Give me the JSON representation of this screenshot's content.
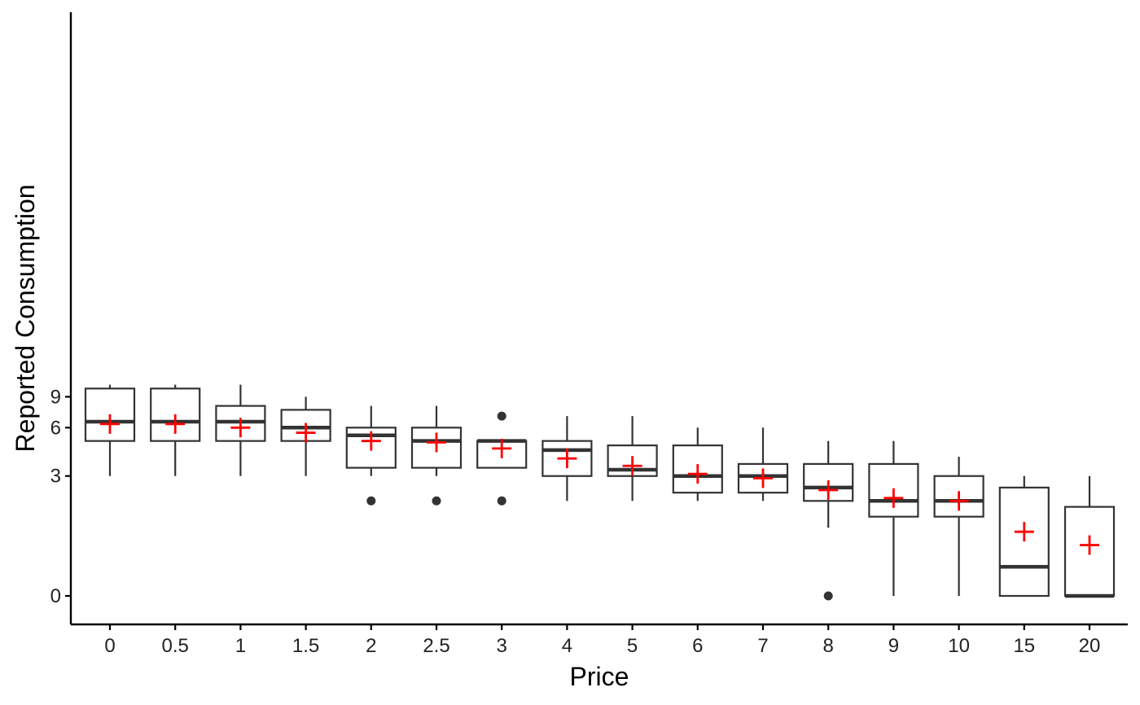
{
  "chart_data": {
    "type": "boxplot",
    "xlabel": "Price",
    "ylabel": "Reported Consumption",
    "y_scale": "log(x+1)",
    "y_ticks": [
      0,
      3,
      6,
      9
    ],
    "y_tick_labels": [
      "0",
      "3",
      "6",
      "9"
    ],
    "grid": false,
    "legend": "none",
    "colors": {
      "box": "#333333",
      "mean_marker": "#ff0000",
      "axis": "#000000"
    },
    "mean_marker": "plus",
    "categories": [
      "0",
      "0.5",
      "1",
      "1.5",
      "2",
      "2.5",
      "3",
      "4",
      "5",
      "6",
      "7",
      "8",
      "9",
      "10",
      "15",
      "20"
    ],
    "boxes": [
      {
        "x": "0",
        "whisker_low": 3,
        "q1": 5,
        "median": 6.5,
        "q3": 10,
        "whisker_high": 10.5,
        "mean": 6.3,
        "outliers": []
      },
      {
        "x": "0.5",
        "whisker_low": 3,
        "q1": 5,
        "median": 6.5,
        "q3": 10,
        "whisker_high": 10.5,
        "mean": 6.3,
        "outliers": []
      },
      {
        "x": "1",
        "whisker_low": 3,
        "q1": 5,
        "median": 6.5,
        "q3": 8,
        "whisker_high": 10.5,
        "mean": 6.0,
        "outliers": []
      },
      {
        "x": "1.5",
        "whisker_low": 3,
        "q1": 5,
        "median": 6,
        "q3": 7.6,
        "whisker_high": 9,
        "mean": 5.6,
        "outliers": []
      },
      {
        "x": "2",
        "whisker_low": 3,
        "q1": 3.4,
        "median": 5.4,
        "q3": 6,
        "whisker_high": 8,
        "mean": 5.0,
        "outliers": [
          2
        ]
      },
      {
        "x": "2.5",
        "whisker_low": 3,
        "q1": 3.4,
        "median": 5,
        "q3": 6,
        "whisker_high": 8,
        "mean": 4.9,
        "outliers": [
          2
        ]
      },
      {
        "x": "3",
        "whisker_low": 3.4,
        "q1": 3.4,
        "median": 5,
        "q3": 5,
        "whisker_high": 5,
        "mean": 4.5,
        "outliers": [
          2,
          7
        ]
      },
      {
        "x": "4",
        "whisker_low": 2,
        "q1": 3,
        "median": 4.4,
        "q3": 5,
        "whisker_high": 7,
        "mean": 3.9,
        "outliers": []
      },
      {
        "x": "5",
        "whisker_low": 2,
        "q1": 3,
        "median": 3.3,
        "q3": 4.7,
        "whisker_high": 7,
        "mean": 3.5,
        "outliers": []
      },
      {
        "x": "6",
        "whisker_low": 2,
        "q1": 2.3,
        "median": 3,
        "q3": 4.7,
        "whisker_high": 6,
        "mean": 3.1,
        "outliers": []
      },
      {
        "x": "7",
        "whisker_low": 2,
        "q1": 2.3,
        "median": 3,
        "q3": 3.6,
        "whisker_high": 6,
        "mean": 2.9,
        "outliers": []
      },
      {
        "x": "8",
        "whisker_low": 1.2,
        "q1": 2,
        "median": 2.5,
        "q3": 3.6,
        "whisker_high": 5,
        "mean": 2.4,
        "outliers": [
          0
        ]
      },
      {
        "x": "9",
        "whisker_low": 0,
        "q1": 1.5,
        "median": 2,
        "q3": 3.6,
        "whisker_high": 5,
        "mean": 2.1,
        "outliers": []
      },
      {
        "x": "10",
        "whisker_low": 0,
        "q1": 1.5,
        "median": 2,
        "q3": 3,
        "whisker_high": 4,
        "mean": 2.0,
        "outliers": []
      },
      {
        "x": "15",
        "whisker_low": 0,
        "q1": 0,
        "median": 0.4,
        "q3": 2.5,
        "whisker_high": 3,
        "mean": 1.1,
        "outliers": []
      },
      {
        "x": "20",
        "whisker_low": 0,
        "q1": 0,
        "median": 0,
        "q3": 1.8,
        "whisker_high": 3,
        "mean": 0.8,
        "outliers": []
      }
    ]
  }
}
